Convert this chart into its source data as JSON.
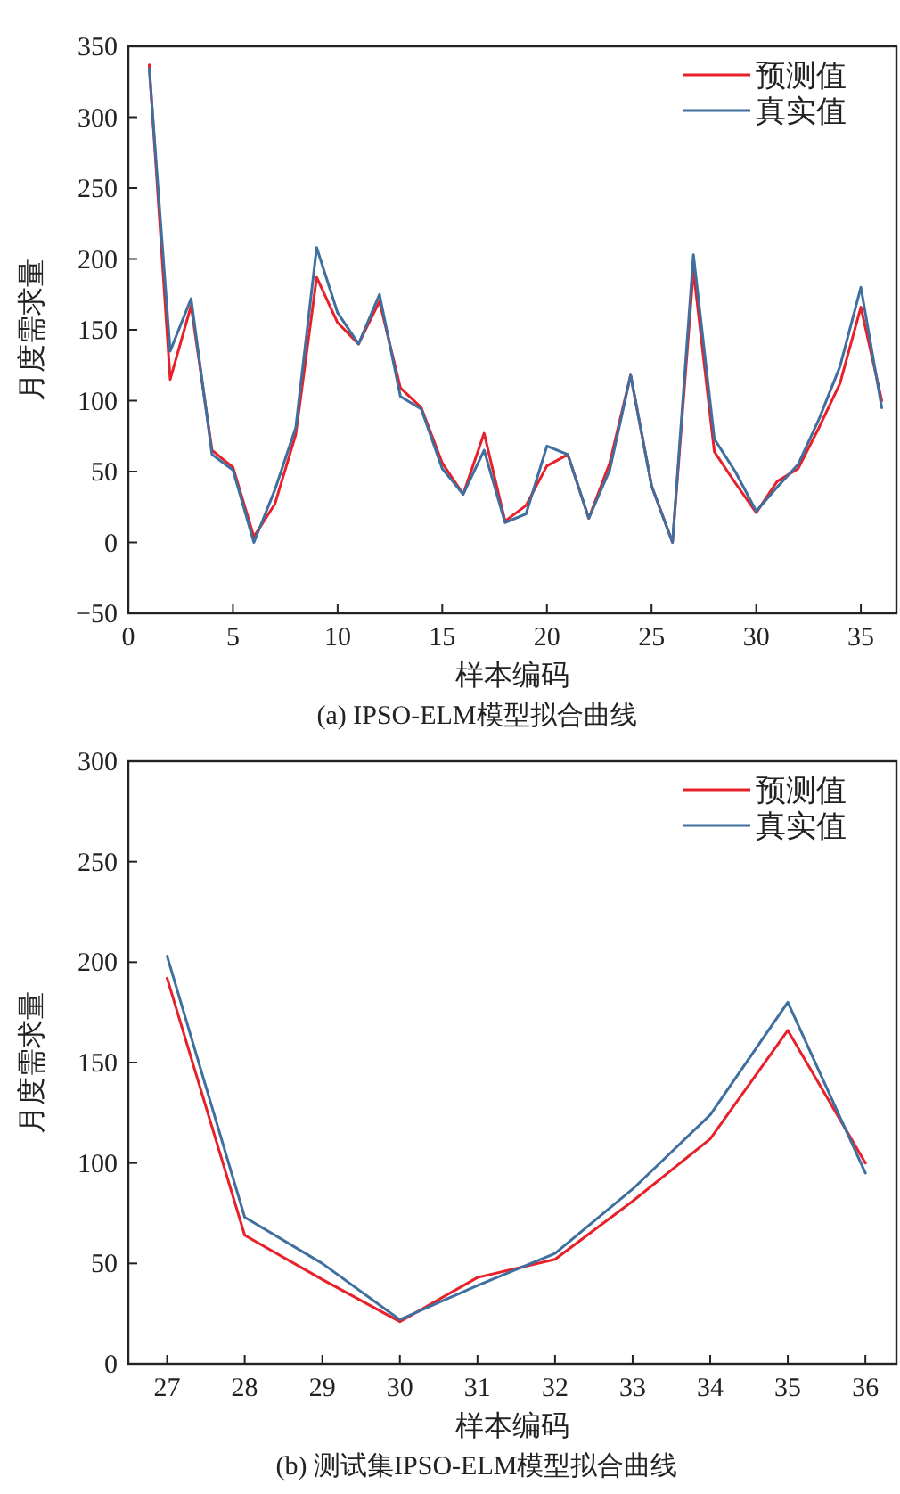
{
  "chart_data": [
    {
      "type": "line",
      "xlabel": "样本编码",
      "ylabel": "月度需求量",
      "annotations": [
        "(a) IPSO-ELM模型拟合曲线"
      ],
      "legend": "top right",
      "grid": false,
      "marker": "none",
      "line_style": "solid",
      "xlim": [
        0,
        36.7
      ],
      "xticks": [
        0,
        5,
        10,
        15,
        20,
        25,
        30,
        35
      ],
      "ylim": [
        -50,
        350
      ],
      "yticks": [
        -50,
        0,
        50,
        100,
        150,
        200,
        250,
        300,
        350
      ],
      "x": [
        1,
        2,
        3,
        4,
        5,
        6,
        7,
        8,
        9,
        10,
        11,
        12,
        13,
        14,
        15,
        16,
        17,
        18,
        19,
        20,
        21,
        22,
        23,
        24,
        25,
        26,
        27,
        28,
        29,
        30,
        31,
        32,
        33,
        34,
        35,
        36
      ],
      "series": [
        {
          "name": "预测值",
          "color": "#e8202a",
          "values": [
            337,
            115,
            167,
            65,
            53,
            4,
            27,
            76,
            187,
            155,
            140,
            170,
            109,
            95,
            56,
            34,
            77,
            15,
            26,
            54,
            62,
            17,
            56,
            118,
            40,
            0,
            192,
            64,
            42,
            21,
            43,
            52,
            81,
            112,
            166,
            100
          ]
        },
        {
          "name": "真实值",
          "color": "#3f6f9e",
          "values": [
            334,
            135,
            172,
            62,
            51,
            0,
            37,
            81,
            208,
            162,
            140,
            175,
            103,
            94,
            52,
            34,
            65,
            14,
            20,
            68,
            62,
            17,
            51,
            118,
            40,
            0,
            203,
            73,
            50,
            22,
            39,
            55,
            87,
            124,
            180,
            95
          ]
        }
      ]
    },
    {
      "type": "line",
      "xlabel": "样本编码",
      "ylabel": "月度需求量",
      "annotations": [
        "(b) 测试集IPSO-ELM模型拟合曲线"
      ],
      "legend": "top right",
      "grid": false,
      "marker": "none",
      "line_style": "solid",
      "xlim": [
        26.5,
        36.4
      ],
      "xticks": [
        27,
        28,
        29,
        30,
        31,
        32,
        33,
        34,
        35,
        36
      ],
      "ylim": [
        0,
        300
      ],
      "yticks": [
        0,
        50,
        100,
        150,
        200,
        250,
        300
      ],
      "x": [
        27,
        28,
        29,
        30,
        31,
        32,
        33,
        34,
        35,
        36
      ],
      "series": [
        {
          "name": "预测值",
          "color": "#e8202a",
          "values": [
            192,
            64,
            42,
            21,
            43,
            52,
            81,
            112,
            166,
            100
          ]
        },
        {
          "name": "真实值",
          "color": "#3f6f9e",
          "values": [
            203,
            73,
            50,
            22,
            39,
            55,
            87,
            124,
            180,
            95
          ]
        }
      ]
    }
  ]
}
